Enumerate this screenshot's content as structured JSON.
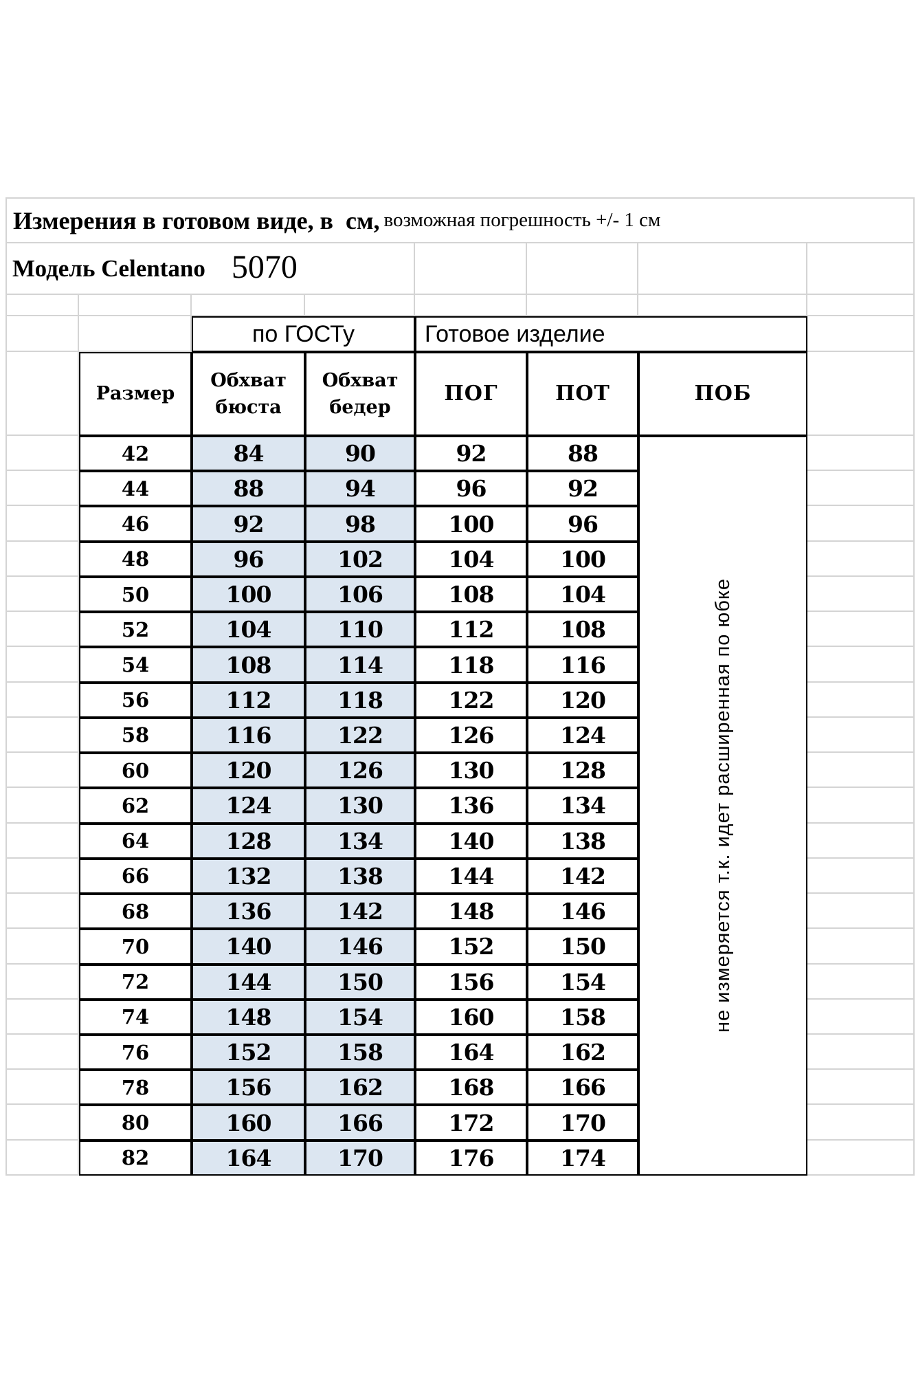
{
  "title": {
    "main": "Измерения в готовом виде, в  см,",
    "note": "возможная погрешность +/- 1 см"
  },
  "model": {
    "label": "Модель Celentano",
    "number": "5070"
  },
  "table": {
    "group_headers": {
      "gost": "по ГОСТу",
      "ready": "Готовое изделие"
    },
    "columns": [
      "Размер",
      "Обхват бюста",
      "Обхват бедер",
      "ПОГ",
      "ПОТ",
      "ПОБ"
    ],
    "pob_note": "не измеряется т.к. идет расширенная по юбке",
    "rows": [
      [
        "42",
        "84",
        "90",
        "92",
        "88"
      ],
      [
        "44",
        "88",
        "94",
        "96",
        "92"
      ],
      [
        "46",
        "92",
        "98",
        "100",
        "96"
      ],
      [
        "48",
        "96",
        "102",
        "104",
        "100"
      ],
      [
        "50",
        "100",
        "106",
        "108",
        "104"
      ],
      [
        "52",
        "104",
        "110",
        "112",
        "108"
      ],
      [
        "54",
        "108",
        "114",
        "118",
        "116"
      ],
      [
        "56",
        "112",
        "118",
        "122",
        "120"
      ],
      [
        "58",
        "116",
        "122",
        "126",
        "124"
      ],
      [
        "60",
        "120",
        "126",
        "130",
        "128"
      ],
      [
        "62",
        "124",
        "130",
        "136",
        "134"
      ],
      [
        "64",
        "128",
        "134",
        "140",
        "138"
      ],
      [
        "66",
        "132",
        "138",
        "144",
        "142"
      ],
      [
        "68",
        "136",
        "142",
        "148",
        "146"
      ],
      [
        "70",
        "140",
        "146",
        "152",
        "150"
      ],
      [
        "72",
        "144",
        "150",
        "156",
        "154"
      ],
      [
        "74",
        "148",
        "154",
        "160",
        "158"
      ],
      [
        "76",
        "152",
        "158",
        "164",
        "162"
      ],
      [
        "78",
        "156",
        "162",
        "168",
        "166"
      ],
      [
        "80",
        "160",
        "166",
        "172",
        "170"
      ],
      [
        "82",
        "164",
        "170",
        "176",
        "174"
      ]
    ],
    "colors": {
      "highlight_fill": "#dce6f1",
      "grid_line": "#d4d4d4",
      "table_border": "#000000",
      "background": "#ffffff"
    }
  }
}
